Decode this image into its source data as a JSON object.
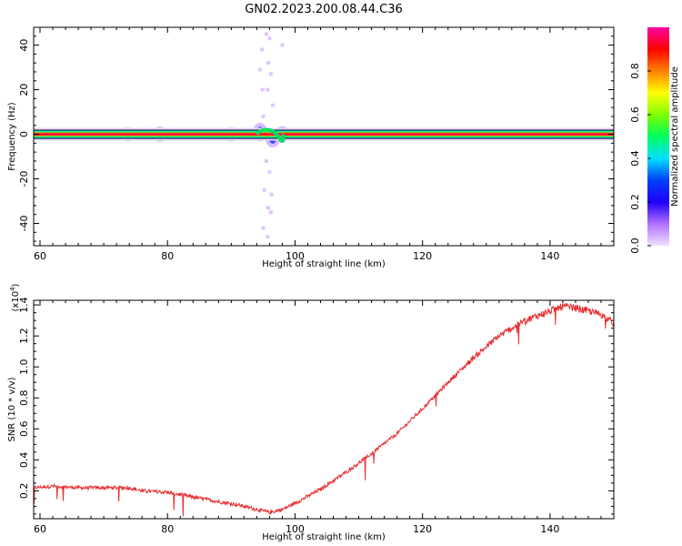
{
  "title": "GN02.2023.200.08.44.C36",
  "chart_data": [
    {
      "type": "heatmap",
      "xlabel": "Height of straight line (km)",
      "ylabel": "Frequency (Hz)",
      "xlim": [
        59,
        150
      ],
      "ylim": [
        -50,
        48
      ],
      "x_ticks": [
        60,
        80,
        100,
        120,
        140
      ],
      "y_ticks": [
        -40,
        -20,
        0,
        20,
        40
      ],
      "colorbar": {
        "label": "Normalized spectral amplitude",
        "range": [
          0,
          1
        ],
        "ticks": [
          "0.0",
          "0.2",
          "0.4",
          "0.6",
          "0.8"
        ],
        "tick_values": [
          0.0,
          0.2,
          0.4,
          0.6,
          0.8
        ],
        "colormap": [
          "#f0e0ff",
          "#b070ff",
          "#2000ff",
          "#0040ff",
          "#00e0ff",
          "#00ff60",
          "#80ff00",
          "#ffff00",
          "#ff8000",
          "#ff0000",
          "#ff00a0"
        ]
      },
      "main_band": {
        "frequency_hz": 0,
        "x_range": [
          59,
          150
        ]
      },
      "features": [
        {
          "x": 73.8,
          "freq": 0,
          "amplitude": 0.15
        },
        {
          "x": 78.8,
          "freq": 0,
          "amplitude": 0.2
        },
        {
          "x": 86.0,
          "freq": 0,
          "amplitude": 0.1
        },
        {
          "x": 90.0,
          "freq": 0,
          "amplitude": 0.15
        },
        {
          "x": 94.5,
          "freq": 1,
          "amplitude": 0.35
        },
        {
          "x": 96.5,
          "freq": -2,
          "amplitude": 0.3
        },
        {
          "x": 98.0,
          "freq": 0,
          "amplitude": 0.25
        },
        {
          "x": 134.0,
          "freq": 0,
          "amplitude": 0.1
        },
        {
          "x": 141.0,
          "freq": 0,
          "amplitude": 0.1
        }
      ],
      "scatter_noise": [
        {
          "x": 95.5,
          "freq": 45
        },
        {
          "x": 96.0,
          "freq": 43
        },
        {
          "x": 94.8,
          "freq": 38
        },
        {
          "x": 95.8,
          "freq": 32
        },
        {
          "x": 94.5,
          "freq": 29
        },
        {
          "x": 96.2,
          "freq": 27
        },
        {
          "x": 94.9,
          "freq": 20
        },
        {
          "x": 95.7,
          "freq": 20
        },
        {
          "x": 96.5,
          "freq": 13
        },
        {
          "x": 95.0,
          "freq": 8
        },
        {
          "x": 95.5,
          "freq": -12
        },
        {
          "x": 96.0,
          "freq": -17
        },
        {
          "x": 95.2,
          "freq": -25
        },
        {
          "x": 96.3,
          "freq": -27
        },
        {
          "x": 95.8,
          "freq": -33
        },
        {
          "x": 96.2,
          "freq": -35
        },
        {
          "x": 95.0,
          "freq": -42
        },
        {
          "x": 95.7,
          "freq": -46
        },
        {
          "x": 98.0,
          "freq": 40
        }
      ]
    },
    {
      "type": "line",
      "xlabel": "Height of straight line (km)",
      "ylabel": "SNR (10 * v/v)",
      "multiplier_label": "(x10",
      "multiplier_exp": "4",
      "multiplier_close": ")",
      "xlim": [
        59,
        150
      ],
      "ylim": [
        0.02,
        1.43
      ],
      "x_ticks": [
        60,
        80,
        100,
        120,
        140
      ],
      "y_ticks": [
        0.2,
        0.4,
        0.6,
        0.8,
        1.0,
        1.2,
        1.4
      ],
      "y_tick_labels": [
        "0.2",
        "0.4",
        "0.6",
        "0.8",
        "1.0",
        "1.2",
        "1.4"
      ],
      "color": "#e83030",
      "series": [
        {
          "x": [
            59,
            62,
            66,
            70,
            74,
            76,
            80,
            84,
            88,
            91,
            94,
            96,
            98,
            100,
            104,
            108,
            112,
            116,
            120,
            124,
            128,
            132,
            136,
            140,
            142,
            144,
            146,
            148,
            150
          ],
          "values": [
            0.22,
            0.23,
            0.22,
            0.22,
            0.22,
            0.2,
            0.19,
            0.16,
            0.13,
            0.11,
            0.08,
            0.06,
            0.08,
            0.12,
            0.21,
            0.32,
            0.44,
            0.57,
            0.73,
            0.9,
            1.06,
            1.2,
            1.3,
            1.36,
            1.39,
            1.38,
            1.36,
            1.34,
            1.28
          ]
        }
      ]
    }
  ]
}
